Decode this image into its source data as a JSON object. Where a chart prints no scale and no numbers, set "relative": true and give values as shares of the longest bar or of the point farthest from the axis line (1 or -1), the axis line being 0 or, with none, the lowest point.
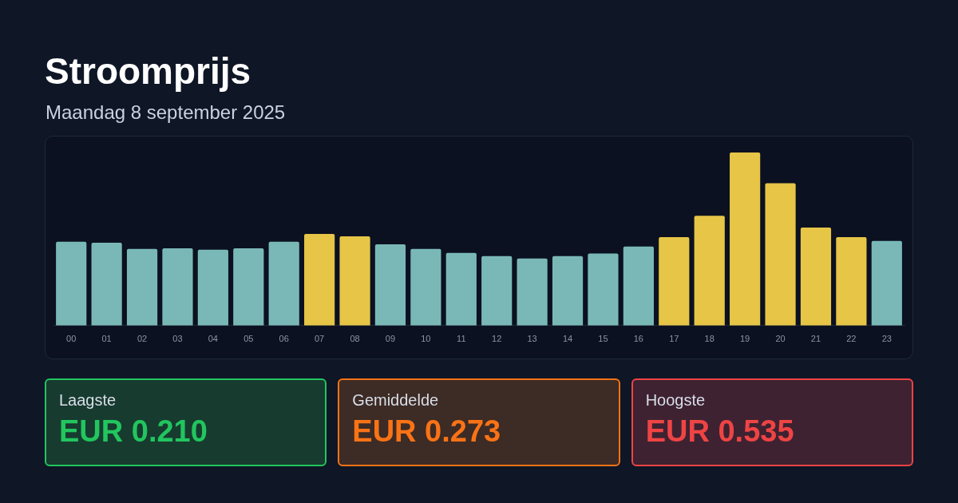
{
  "chart_data": [
    {
      "type": "bar",
      "title": "Stroomprijs",
      "subtitle": "Maandag 8 september 2025",
      "relative": true,
      "grid": false,
      "legend": false,
      "categories": [
        "00",
        "01",
        "02",
        "03",
        "04",
        "05",
        "06",
        "07",
        "08",
        "09",
        "10",
        "11",
        "12",
        "13",
        "14",
        "15",
        "16",
        "17",
        "18",
        "19",
        "20",
        "21",
        "22",
        "23"
      ],
      "values": [
        0.484,
        0.479,
        0.443,
        0.447,
        0.438,
        0.447,
        0.484,
        0.53,
        0.516,
        0.47,
        0.443,
        0.42,
        0.402,
        0.388,
        0.402,
        0.416,
        0.457,
        0.511,
        0.635,
        1,
        0.822,
        0.566,
        0.511,
        0.489
      ],
      "colors": [
        "#7ab8b8",
        "#7ab8b8",
        "#7ab8b8",
        "#7ab8b8",
        "#7ab8b8",
        "#7ab8b8",
        "#7ab8b8",
        "#e6c547",
        "#e6c547",
        "#7ab8b8",
        "#7ab8b8",
        "#7ab8b8",
        "#7ab8b8",
        "#7ab8b8",
        "#7ab8b8",
        "#7ab8b8",
        "#7ab8b8",
        "#e6c547",
        "#e6c547",
        "#e6c547",
        "#e6c547",
        "#e6c547",
        "#e6c547",
        "#7ab8b8"
      ]
    },
    {
      "type": "other",
      "annotations": [
        "Laagste",
        "EUR 0.210",
        "Gemiddelde",
        "EUR 0.273",
        "Hoogste",
        "EUR 0.535"
      ]
    }
  ]
}
